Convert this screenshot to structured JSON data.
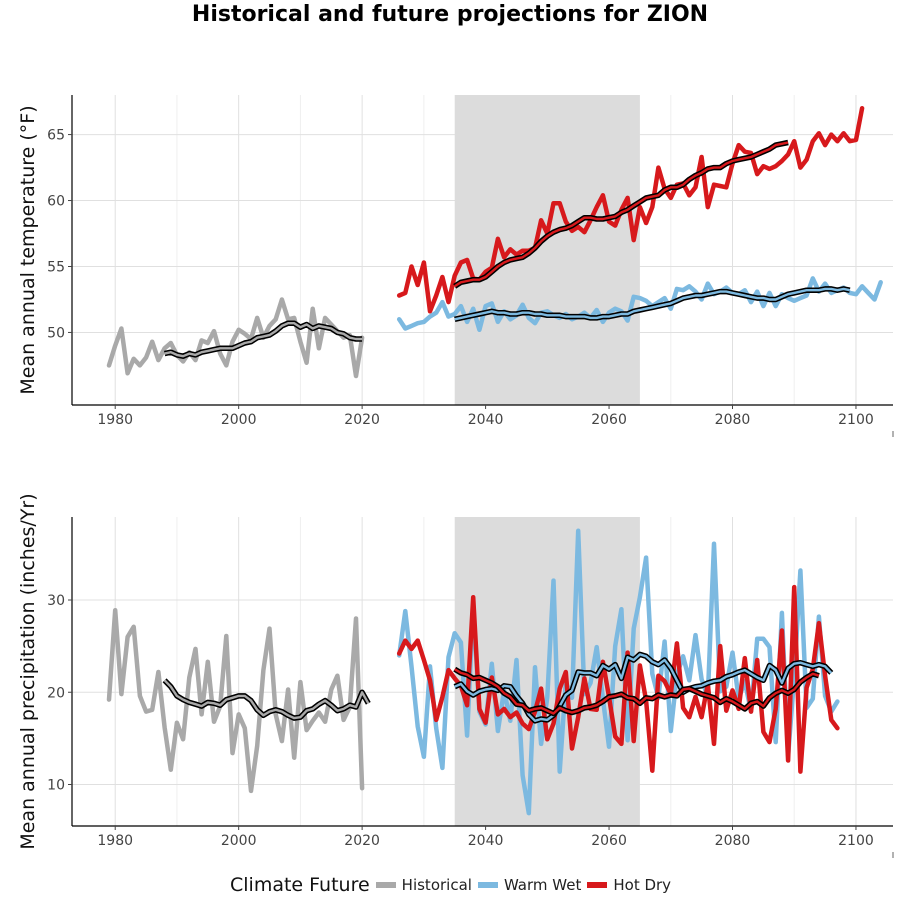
{
  "title": "Historical and future projections for ZION",
  "legend": {
    "title": "Climate Future",
    "items": [
      {
        "label": "Historical",
        "color": "#a9a9a9"
      },
      {
        "label": "Warm Wet",
        "color": "#7cb9e0"
      },
      {
        "label": "Hot Dry",
        "color": "#d7191c"
      }
    ]
  },
  "colors": {
    "historical": "#a9a9a9",
    "warm_wet": "#7cb9e0",
    "hot_dry": "#d7191c",
    "smooth": "#000000",
    "shade": "#dcdcdc"
  },
  "chart_data": [
    {
      "type": "line",
      "ylabel": "Mean annual temperature (°F)",
      "xlabel": "",
      "xlim": [
        1973,
        2106
      ],
      "ylim": [
        44.5,
        68
      ],
      "xticks": [
        1980,
        2000,
        2020,
        2040,
        2060,
        2080,
        2100
      ],
      "yticks": [
        50,
        55,
        60,
        65
      ],
      "grid": true,
      "shaded_period": [
        2035,
        2065
      ],
      "series": [
        {
          "name": "Historical",
          "color": "#a9a9a9",
          "x_start": 1979,
          "values": [
            47.5,
            49.0,
            50.3,
            46.9,
            48.0,
            47.5,
            48.1,
            49.3,
            47.9,
            48.8,
            49.2,
            48.3,
            47.8,
            48.5,
            47.9,
            49.4,
            49.2,
            50.1,
            48.4,
            47.5,
            49.3,
            50.2,
            49.9,
            49.5,
            51.1,
            49.6,
            50.5,
            51.0,
            52.5,
            51.0,
            51.1,
            49.3,
            47.7,
            51.8,
            48.8,
            51.1,
            50.6,
            50.1,
            49.6,
            49.8,
            46.7,
            49.6
          ],
          "smooth_x_start": 1988,
          "smooth": [
            48.4,
            48.5,
            48.3,
            48.2,
            48.4,
            48.3,
            48.5,
            48.6,
            48.7,
            48.8,
            48.8,
            48.8,
            49.0,
            49.2,
            49.3,
            49.6,
            49.7,
            49.8,
            50.1,
            50.5,
            50.7,
            50.7,
            50.4,
            50.6,
            50.3,
            50.5,
            50.4,
            50.3,
            50.0,
            49.9,
            49.6,
            49.5,
            49.5
          ]
        },
        {
          "name": "Warm Wet",
          "color": "#7cb9e0",
          "x_start": 2026,
          "values": [
            51.0,
            50.3,
            50.5,
            50.7,
            50.8,
            51.2,
            51.5,
            52.3,
            51.2,
            51.4,
            52.0,
            50.8,
            51.8,
            50.2,
            52.0,
            52.2,
            50.8,
            51.6,
            51.0,
            51.3,
            52.1,
            51.1,
            50.7,
            51.5,
            51.6,
            51.3,
            51.1,
            51.4,
            51.0,
            51.2,
            51.5,
            51.1,
            51.7,
            50.8,
            51.5,
            51.8,
            51.6,
            50.9,
            52.7,
            52.6,
            52.4,
            52.0,
            52.3,
            52.6,
            51.8,
            53.3,
            53.2,
            53.5,
            53.1,
            52.5,
            53.7,
            52.9,
            53.1,
            53.4,
            53.0,
            52.9,
            53.2,
            52.3,
            53.1,
            52.0,
            53.0,
            52.0,
            52.9,
            52.6,
            52.4,
            52.6,
            52.8,
            54.1,
            53.1,
            53.7,
            53.0,
            53.2,
            53.4,
            53.0,
            52.9,
            53.5,
            53.0,
            52.5,
            53.8
          ],
          "smooth_x_start": 2035,
          "smooth": [
            51.0,
            51.1,
            51.2,
            51.3,
            51.4,
            51.5,
            51.6,
            51.5,
            51.5,
            51.4,
            51.4,
            51.5,
            51.5,
            51.4,
            51.4,
            51.3,
            51.3,
            51.3,
            51.2,
            51.2,
            51.2,
            51.2,
            51.1,
            51.1,
            51.2,
            51.2,
            51.3,
            51.4,
            51.4,
            51.6,
            51.7,
            51.8,
            51.9,
            52.0,
            52.1,
            52.2,
            52.4,
            52.6,
            52.7,
            52.8,
            52.8,
            52.9,
            53.0,
            53.1,
            53.1,
            53.0,
            52.9,
            52.8,
            52.7,
            52.6,
            52.6,
            52.5,
            52.5,
            52.7,
            52.9,
            53.0,
            53.1,
            53.2,
            53.2,
            53.2,
            53.3,
            53.3,
            53.2,
            53.3,
            53.2
          ]
        },
        {
          "name": "Hot Dry",
          "color": "#d7191c",
          "x_start": 2026,
          "values": [
            52.8,
            53.0,
            55.0,
            53.6,
            55.3,
            51.6,
            52.8,
            54.2,
            52.3,
            54.3,
            55.3,
            55.5,
            54.1,
            54.0,
            54.6,
            54.9,
            57.1,
            55.7,
            56.3,
            55.9,
            56.2,
            56.2,
            56.4,
            58.5,
            57.5,
            59.8,
            59.8,
            58.4,
            57.7,
            58.0,
            57.6,
            58.5,
            59.5,
            60.4,
            58.4,
            58.1,
            59.3,
            60.2,
            57.0,
            59.5,
            58.3,
            59.5,
            62.5,
            60.9,
            60.2,
            61.2,
            61.3,
            60.4,
            61.0,
            63.3,
            59.5,
            61.2,
            61.1,
            61.0,
            62.8,
            64.2,
            63.7,
            63.6,
            62.0,
            62.6,
            62.4,
            62.6,
            63.0,
            63.5,
            64.5,
            62.5,
            63.1,
            64.5,
            65.1,
            64.2,
            65.0,
            64.5,
            65.1,
            64.5,
            64.6,
            67.0
          ],
          "smooth_x_start": 2035,
          "smooth": [
            53.5,
            53.8,
            53.9,
            54.0,
            54.0,
            54.2,
            54.6,
            55.0,
            55.3,
            55.5,
            55.6,
            55.7,
            56.0,
            56.4,
            56.9,
            57.3,
            57.6,
            57.8,
            57.9,
            58.1,
            58.4,
            58.7,
            58.7,
            58.6,
            58.6,
            58.7,
            58.8,
            59.1,
            59.3,
            59.6,
            59.9,
            60.2,
            60.3,
            60.4,
            60.8,
            61.0,
            61.0,
            61.2,
            61.6,
            61.9,
            62.1,
            62.4,
            62.5,
            62.5,
            62.8,
            63.0,
            63.1,
            63.2,
            63.3,
            63.5,
            63.7,
            63.9,
            64.2,
            64.3,
            64.4
          ]
        }
      ]
    },
    {
      "type": "line",
      "ylabel": "Mean annual precipitation (inches/Yr)",
      "xlabel": "",
      "xlim": [
        1973,
        2106
      ],
      "ylim": [
        5.5,
        39
      ],
      "xticks": [
        1980,
        2000,
        2020,
        2040,
        2060,
        2080,
        2100
      ],
      "yticks": [
        10,
        20,
        30
      ],
      "grid": true,
      "shaded_period": [
        2035,
        2065
      ],
      "series": [
        {
          "name": "Historical",
          "color": "#a9a9a9",
          "x_start": 1979,
          "values": [
            19.2,
            28.9,
            19.8,
            26.0,
            27.1,
            19.6,
            17.9,
            18.1,
            22.2,
            16.2,
            11.6,
            16.7,
            14.9,
            21.6,
            24.7,
            17.6,
            23.3,
            16.8,
            18.5,
            26.1,
            13.4,
            17.6,
            16.1,
            9.3,
            14.2,
            22.4,
            26.9,
            17.6,
            14.7,
            20.3,
            12.9,
            21.1,
            15.9,
            16.9,
            17.8,
            16.8,
            20.3,
            21.8,
            17.0,
            18.4,
            28.0,
            9.6
          ],
          "smooth_x_start": 1988,
          "smooth": [
            21.3,
            20.6,
            19.6,
            19.2,
            18.9,
            18.7,
            18.5,
            18.9,
            18.8,
            18.6,
            19.2,
            19.4,
            19.6,
            19.6,
            19.1,
            18.1,
            17.5,
            17.9,
            18.1,
            17.9,
            17.5,
            17.2,
            17.3,
            18.0,
            18.2,
            18.7,
            19.1,
            18.6,
            18.0,
            18.2,
            18.6,
            18.4,
            20.0,
            18.8
          ]
        },
        {
          "name": "Warm Wet",
          "color": "#7cb9e0",
          "x_start": 2026,
          "values": [
            24.0,
            28.8,
            22.8,
            16.3,
            13.0,
            22.8,
            16.1,
            11.8,
            23.8,
            26.4,
            25.4,
            15.3,
            29.3,
            17.9,
            16.5,
            23.1,
            15.8,
            20.2,
            16.9,
            23.5,
            11.0,
            6.9,
            22.7,
            14.4,
            19.5,
            32.1,
            11.4,
            21.1,
            19.4,
            37.5,
            19.8,
            21.0,
            24.9,
            19.3,
            14.1,
            25.0,
            29.0,
            14.8,
            26.9,
            30.3,
            34.6,
            22.0,
            19.4,
            25.5,
            15.8,
            21.9,
            23.9,
            21.3,
            26.2,
            21.4,
            19.5,
            36.1,
            20.1,
            20.6,
            24.3,
            19.3,
            21.2,
            17.9,
            25.8,
            25.8,
            24.9,
            14.6,
            28.6,
            13.1,
            21.7,
            33.2,
            18.3,
            19.3,
            28.2,
            19.6,
            17.9,
            19.0
          ],
          "smooth_x_start": 2035,
          "smooth": [
            20.6,
            20.9,
            20.1,
            19.7,
            20.1,
            20.3,
            20.4,
            20.2,
            20.7,
            20.6,
            19.6,
            18.8,
            17.6,
            16.9,
            17.1,
            17.0,
            17.5,
            18.5,
            19.7,
            20.2,
            22.2,
            22.1,
            22.1,
            21.8,
            22.9,
            22.5,
            23.0,
            21.5,
            23.8,
            23.5,
            24.1,
            23.9,
            23.3,
            23.0,
            23.5,
            22.6,
            21.3,
            20.0,
            20.4,
            20.6,
            20.7,
            21.0,
            21.2,
            21.3,
            21.7,
            21.9,
            22.2,
            22.4,
            22.0,
            21.6,
            21.3,
            22.9,
            22.4,
            21.0,
            22.6,
            23.1,
            23.2,
            23.0,
            22.8,
            23.0,
            22.8,
            22.1
          ]
        },
        {
          "name": "Hot Dry",
          "color": "#d7191c",
          "x_start": 2026,
          "values": [
            24.2,
            25.6,
            24.7,
            25.6,
            23.5,
            21.3,
            17.0,
            19.5,
            22.4,
            21.5,
            20.7,
            18.6,
            30.3,
            18.2,
            16.7,
            21.6,
            17.6,
            18.2,
            17.3,
            17.8,
            16.6,
            16.0,
            17.9,
            20.4,
            14.9,
            16.6,
            20.4,
            22.2,
            13.9,
            17.3,
            21.5,
            18.2,
            18.1,
            23.3,
            19.5,
            15.2,
            14.4,
            24.3,
            14.7,
            22.9,
            19.1,
            11.5,
            21.8,
            21.2,
            19.8,
            25.3,
            18.3,
            17.3,
            19.5,
            17.3,
            20.9,
            14.4,
            25.0,
            18.0,
            20.2,
            18.2,
            23.7,
            17.9,
            23.5,
            15.7,
            14.6,
            18.2,
            26.7,
            12.6,
            31.4,
            11.4,
            20.5,
            22.5,
            27.5,
            21.8,
            17.0,
            16.1
          ],
          "smooth_x_start": 2035,
          "smooth": [
            22.5,
            22.1,
            21.9,
            21.5,
            21.6,
            21.3,
            21.0,
            20.6,
            19.9,
            19.5,
            18.7,
            18.6,
            18.0,
            18.2,
            18.3,
            18.0,
            17.7,
            18.3,
            18.0,
            17.8,
            18.0,
            18.3,
            18.4,
            18.6,
            19.0,
            19.5,
            19.6,
            19.8,
            19.4,
            19.3,
            18.8,
            19.4,
            19.3,
            19.7,
            19.5,
            19.7,
            19.6,
            20.3,
            20.4,
            20.1,
            19.8,
            19.6,
            19.4,
            18.9,
            19.3,
            19.0,
            18.6,
            18.2,
            18.8,
            19.0,
            18.5,
            19.4,
            19.9,
            20.2,
            19.9,
            20.3,
            21.1,
            21.6,
            22.0,
            21.8
          ]
        }
      ]
    }
  ]
}
